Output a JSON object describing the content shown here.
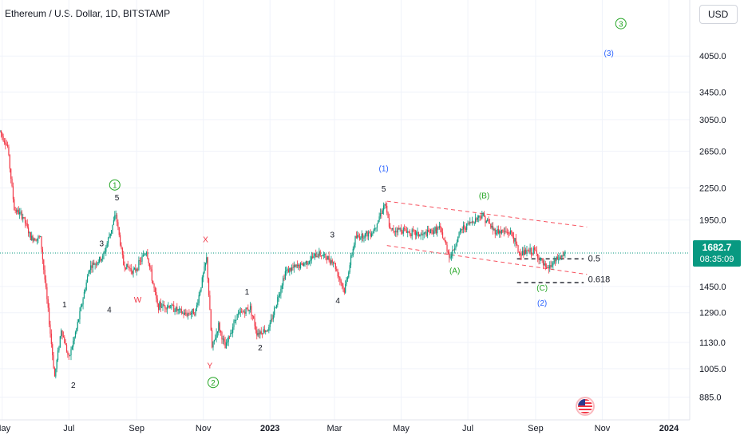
{
  "header": {
    "title": "Ethereum / U.S. Dollar, 1D, BITSTAMP",
    "currency_button": "USD"
  },
  "price_badge": {
    "price": "1682.7",
    "countdown": "08:35:09",
    "color": "#089981"
  },
  "colors": {
    "up": "#089981",
    "down": "#f23645",
    "blue": "#2962ff",
    "green": "#26a626",
    "red": "#f23645",
    "channel": "#f7525f"
  },
  "chart_data": {
    "type": "candlestick",
    "title": "Ethereum / U.S. Dollar, 1D, BITSTAMP",
    "y_scale": "log",
    "ylim": [
      800,
      5200
    ],
    "y_ticks": [
      885.0,
      1005.0,
      1130.0,
      1290.0,
      1450.0,
      1950.0,
      2250.0,
      2650.0,
      3050.0,
      3450.0,
      4050.0
    ],
    "y_tick_labels": [
      "885.0",
      "1005.0",
      "1130.0",
      "1290.0",
      "1450.0",
      "1950.0",
      "2250.0",
      "2650.0",
      "3050.0",
      "3450.0",
      "4050.0"
    ],
    "x_ticks": [
      "2022-05-01",
      "2022-07-01",
      "2022-09-01",
      "2022-11-01",
      "2023-01-01",
      "2023-03-01",
      "2023-05-01",
      "2023-07-01",
      "2023-09-01",
      "2023-11-01",
      "2024-01-01"
    ],
    "x_tick_labels": [
      "May",
      "Jul",
      "Sep",
      "Nov",
      "2023",
      "Mar",
      "May",
      "Jul",
      "Sep",
      "Nov",
      "2024"
    ],
    "xlim": [
      "2022-04-29",
      "2024-01-20"
    ],
    "price_path": [
      [
        "2022-04-29",
        2900
      ],
      [
        "2022-05-06",
        2700
      ],
      [
        "2022-05-12",
        2050
      ],
      [
        "2022-05-20",
        1980
      ],
      [
        "2022-05-27",
        1800
      ],
      [
        "2022-06-05",
        1800
      ],
      [
        "2022-06-12",
        1300
      ],
      [
        "2022-06-18",
        970
      ],
      [
        "2022-06-24",
        1200
      ],
      [
        "2022-07-01",
        1050
      ],
      [
        "2022-07-08",
        1200
      ],
      [
        "2022-07-20",
        1580
      ],
      [
        "2022-08-01",
        1650
      ],
      [
        "2022-08-13",
        2000
      ],
      [
        "2022-08-20",
        1600
      ],
      [
        "2022-08-30",
        1550
      ],
      [
        "2022-09-10",
        1700
      ],
      [
        "2022-09-20",
        1330
      ],
      [
        "2022-10-01",
        1330
      ],
      [
        "2022-10-15",
        1280
      ],
      [
        "2022-10-25",
        1300
      ],
      [
        "2022-11-04",
        1640
      ],
      [
        "2022-11-09",
        1100
      ],
      [
        "2022-11-15",
        1220
      ],
      [
        "2022-11-21",
        1100
      ],
      [
        "2022-12-01",
        1270
      ],
      [
        "2022-12-14",
        1320
      ],
      [
        "2022-12-20",
        1180
      ],
      [
        "2022-12-31",
        1200
      ],
      [
        "2023-01-15",
        1550
      ],
      [
        "2023-01-31",
        1600
      ],
      [
        "2023-02-15",
        1680
      ],
      [
        "2023-02-28",
        1620
      ],
      [
        "2023-03-10",
        1420
      ],
      [
        "2023-03-20",
        1800
      ],
      [
        "2023-04-05",
        1850
      ],
      [
        "2023-04-16",
        2100
      ],
      [
        "2023-04-21",
        1860
      ],
      [
        "2023-05-01",
        1870
      ],
      [
        "2023-05-20",
        1820
      ],
      [
        "2023-06-05",
        1880
      ],
      [
        "2023-06-15",
        1650
      ],
      [
        "2023-06-25",
        1870
      ],
      [
        "2023-07-14",
        2000
      ],
      [
        "2023-07-25",
        1860
      ],
      [
        "2023-08-10",
        1840
      ],
      [
        "2023-08-17",
        1680
      ],
      [
        "2023-08-31",
        1700
      ],
      [
        "2023-09-11",
        1560
      ],
      [
        "2023-09-20",
        1630
      ],
      [
        "2023-09-28",
        1680
      ]
    ],
    "channel_lines": [
      {
        "from": [
          "2023-04-18",
          2120
        ],
        "to": [
          "2023-10-18",
          1890
        ]
      },
      {
        "from": [
          "2023-04-18",
          1740
        ],
        "to": [
          "2023-10-18",
          1530
        ]
      }
    ],
    "level_lines": [
      {
        "label": "0.5",
        "price": 1640,
        "from": "2023-08-15",
        "to": "2023-10-15"
      },
      {
        "label": "0.618",
        "price": 1475,
        "from": "2023-08-15",
        "to": "2023-10-15"
      }
    ],
    "current_price_line": 1682.7,
    "annotations": [
      {
        "text": "1",
        "date": "2022-06-27",
        "price": 1340,
        "style": "black"
      },
      {
        "text": "2",
        "date": "2022-07-05",
        "price": 935,
        "style": "black"
      },
      {
        "text": "3",
        "date": "2022-07-31",
        "price": 1760,
        "style": "black"
      },
      {
        "text": "4",
        "date": "2022-08-07",
        "price": 1310,
        "style": "black"
      },
      {
        "text": "5",
        "date": "2022-08-14",
        "price": 2160,
        "style": "black"
      },
      {
        "text": "1",
        "date": "2022-08-12",
        "price": 2280,
        "style": "green-circle"
      },
      {
        "text": "W",
        "date": "2022-09-02",
        "price": 1370,
        "style": "red"
      },
      {
        "text": "X",
        "date": "2022-11-03",
        "price": 1790,
        "style": "red"
      },
      {
        "text": "Y",
        "date": "2022-11-07",
        "price": 1020,
        "style": "red"
      },
      {
        "text": "2",
        "date": "2022-11-10",
        "price": 945,
        "style": "green-circle"
      },
      {
        "text": "1",
        "date": "2022-12-11",
        "price": 1420,
        "style": "black"
      },
      {
        "text": "2",
        "date": "2022-12-23",
        "price": 1105,
        "style": "black"
      },
      {
        "text": "3",
        "date": "2023-02-27",
        "price": 1830,
        "style": "black"
      },
      {
        "text": "4",
        "date": "2023-03-04",
        "price": 1365,
        "style": "black"
      },
      {
        "text": "5",
        "date": "2023-04-15",
        "price": 2245,
        "style": "black"
      },
      {
        "text": "(1)",
        "date": "2023-04-15",
        "price": 2460,
        "style": "blue"
      },
      {
        "text": "(A)",
        "date": "2023-06-19",
        "price": 1560,
        "style": "green"
      },
      {
        "text": "(B)",
        "date": "2023-07-16",
        "price": 2180,
        "style": "green"
      },
      {
        "text": "(C)",
        "date": "2023-09-07",
        "price": 1445,
        "style": "green"
      },
      {
        "text": "(2)",
        "date": "2023-09-07",
        "price": 1350,
        "style": "blue"
      },
      {
        "text": "(3)",
        "date": "2023-11-07",
        "price": 4110,
        "style": "blue"
      },
      {
        "text": "3",
        "date": "2023-11-18",
        "price": 4680,
        "style": "green-circle"
      },
      {
        "text": "0.5",
        "date": "2023-10-19",
        "price": 1645,
        "style": "black-left"
      },
      {
        "text": "0.618",
        "date": "2023-10-19",
        "price": 1500,
        "style": "black-left"
      }
    ]
  }
}
